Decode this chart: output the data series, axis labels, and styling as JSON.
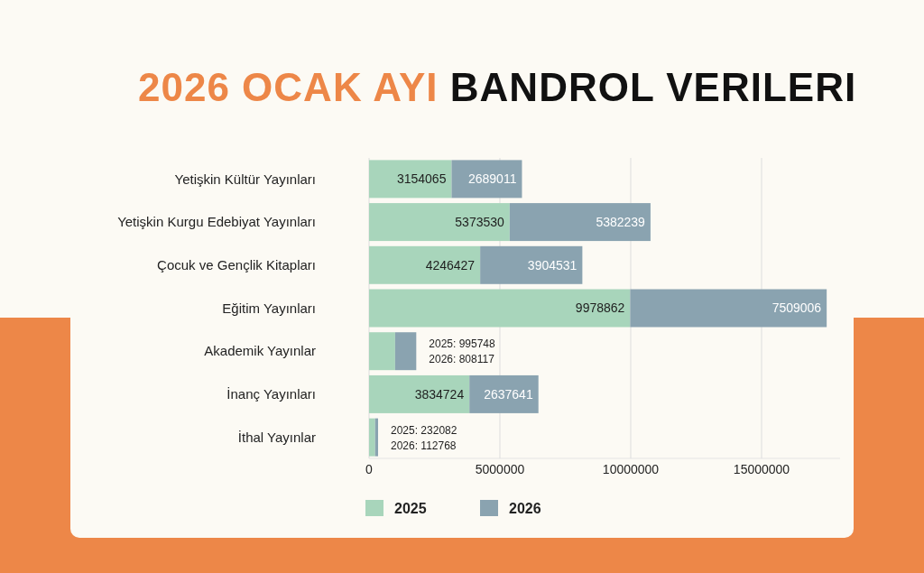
{
  "chart_data": {
    "type": "bar",
    "orientation": "horizontal",
    "stacked": true,
    "title": "2026 OCAK AYI BANDROL VERILERI",
    "categories": [
      "Yetişkin Kültür Yayınları",
      "Yetişkin Kurgu Edebiyat Yayınları",
      "Çocuk ve Gençlik Kitapları",
      "Eğitim Yayınları",
      "Akademik Yayınlar",
      "İnanç Yayınları",
      "İthal Yayınlar"
    ],
    "series": [
      {
        "name": "2025",
        "color": "#a8d5bb",
        "values": [
          3154065,
          5373530,
          4246427,
          9978862,
          995748,
          3834724,
          232082
        ],
        "value_labels": [
          "3154065",
          "5373530",
          "4246427",
          "9978862",
          "2025: 995748",
          "3834724",
          "2025: 232082"
        ]
      },
      {
        "name": "2026",
        "color": "#8aa3b0",
        "values": [
          2689011,
          5382239,
          3904531,
          7509006,
          808117,
          2637641,
          112768
        ],
        "value_labels": [
          "2689011",
          "5382239",
          "3904531",
          "7509006",
          "2026: 808117",
          "2637641",
          "2026: 112768"
        ]
      }
    ],
    "xlim": [
      0,
      18000000
    ],
    "xticks": [
      0,
      5000000,
      10000000,
      15000000
    ],
    "grid": "x",
    "legend": "bottom"
  }
}
